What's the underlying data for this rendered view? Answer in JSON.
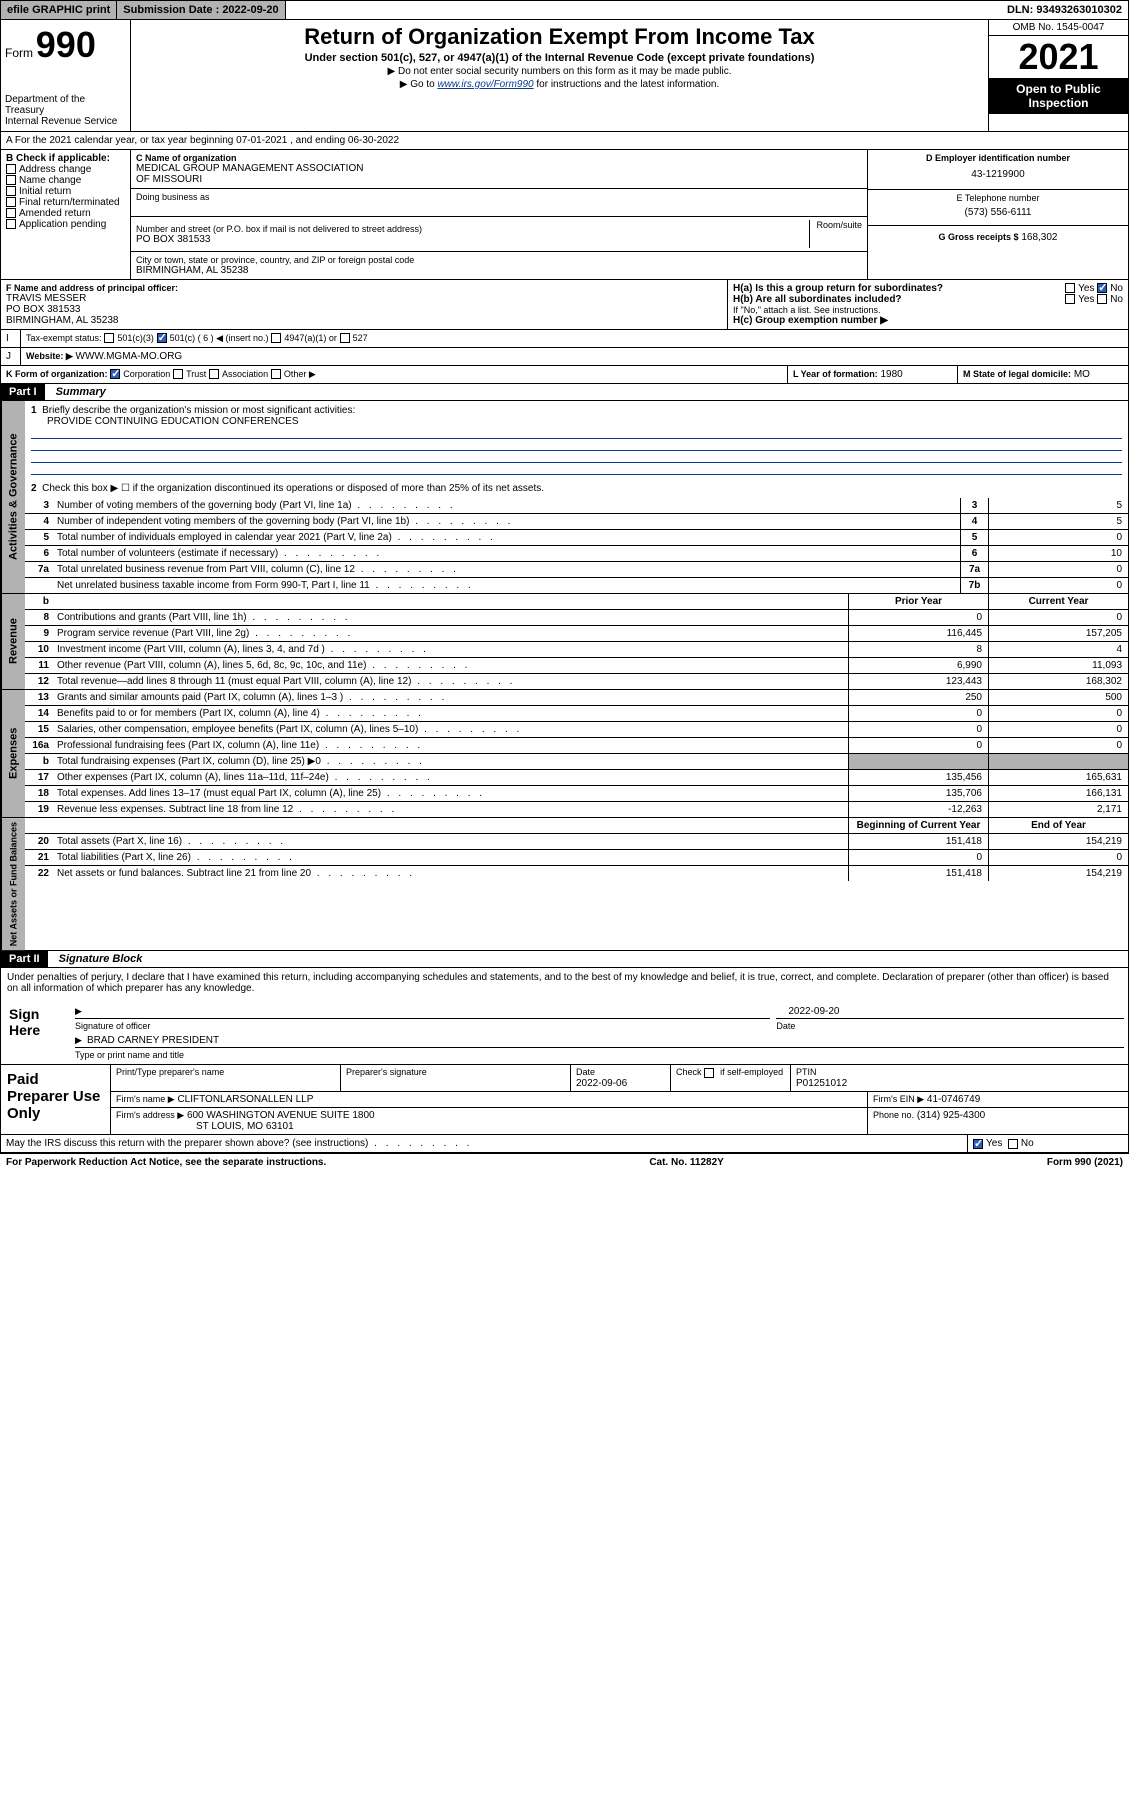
{
  "topbar": {
    "efile": "efile GRAPHIC print",
    "sub_label": "Submission Date : 2022-09-20",
    "dln": "DLN: 93493263010302"
  },
  "header": {
    "form_word": "Form",
    "form_number": "990",
    "title": "Return of Organization Exempt From Income Tax",
    "subtitle": "Under section 501(c), 527, or 4947(a)(1) of the Internal Revenue Code (except private foundations)",
    "note1": "▶ Do not enter social security numbers on this form as it may be made public.",
    "note2_pre": "▶ Go to ",
    "note2_link": "www.irs.gov/Form990",
    "note2_post": " for instructions and the latest information.",
    "dept": "Department of the Treasury",
    "irs": "Internal Revenue Service",
    "omb": "OMB No. 1545-0047",
    "year": "2021",
    "open": "Open to Public Inspection"
  },
  "A": {
    "text": "A For the 2021 calendar year, or tax year beginning 07-01-2021  , and ending 06-30-2022"
  },
  "B": {
    "title": "B Check if applicable:",
    "opts": [
      "Address change",
      "Name change",
      "Initial return",
      "Final return/terminated",
      "Amended return",
      "Application pending"
    ]
  },
  "C": {
    "name_lbl": "C Name of organization",
    "name1": "MEDICAL GROUP MANAGEMENT ASSOCIATION",
    "name2": "OF MISSOURI",
    "dba_lbl": "Doing business as",
    "addr_lbl": "Number and street (or P.O. box if mail is not delivered to street address)",
    "room_lbl": "Room/suite",
    "addr": "PO BOX 381533",
    "city_lbl": "City or town, state or province, country, and ZIP or foreign postal code",
    "city": "BIRMINGHAM, AL  35238"
  },
  "D": {
    "lbl": "D Employer identification number",
    "val": "43-1219900"
  },
  "E": {
    "lbl": "E Telephone number",
    "val": "(573) 556-6111"
  },
  "G": {
    "lbl": "G Gross receipts $",
    "val": "168,302"
  },
  "F": {
    "lbl": "F Name and address of principal officer:",
    "name": "TRAVIS MESSER",
    "addr1": "PO BOX 381533",
    "addr2": "BIRMINGHAM, AL  35238"
  },
  "H": {
    "a": "H(a)  Is this a group return for subordinates?",
    "b": "H(b)  Are all subordinates included?",
    "note": "If \"No,\" attach a list. See instructions.",
    "c": "H(c)  Group exemption number ▶"
  },
  "I": {
    "lbl": "Tax-exempt status:",
    "a": "501(c)(3)",
    "b": "501(c) ( 6 ) ◀ (insert no.)",
    "c": "4947(a)(1) or",
    "d": "527"
  },
  "J": {
    "lbl": "Website: ▶",
    "val": "WWW.MGMA-MO.ORG"
  },
  "K": {
    "lbl": "K Form of organization:",
    "a": "Corporation",
    "b": "Trust",
    "c": "Association",
    "d": "Other ▶"
  },
  "L": {
    "lbl": "L Year of formation:",
    "val": "1980"
  },
  "M": {
    "lbl": "M State of legal domicile:",
    "val": "MO"
  },
  "part1": {
    "hdr": "Part I",
    "title": "Summary",
    "q1": "Briefly describe the organization's mission or most significant activities:",
    "q1v": "PROVIDE CONTINUING EDUCATION CONFERENCES",
    "q2": "Check this box ▶ ☐  if the organization discontinued its operations or disposed of more than 25% of its net assets."
  },
  "tabs": {
    "gov": "Activities & Governance",
    "rev": "Revenue",
    "exp": "Expenses",
    "net": "Net Assets or Fund Balances"
  },
  "gov_lines": [
    {
      "n": "3",
      "t": "Number of voting members of the governing body (Part VI, line 1a)",
      "b": "3",
      "v": "5"
    },
    {
      "n": "4",
      "t": "Number of independent voting members of the governing body (Part VI, line 1b)",
      "b": "4",
      "v": "5"
    },
    {
      "n": "5",
      "t": "Total number of individuals employed in calendar year 2021 (Part V, line 2a)",
      "b": "5",
      "v": "0"
    },
    {
      "n": "6",
      "t": "Total number of volunteers (estimate if necessary)",
      "b": "6",
      "v": "10"
    },
    {
      "n": "7a",
      "t": "Total unrelated business revenue from Part VIII, column (C), line 12",
      "b": "7a",
      "v": "0"
    },
    {
      "n": "",
      "t": "Net unrelated business taxable income from Form 990-T, Part I, line 11",
      "b": "7b",
      "v": "0"
    }
  ],
  "col_hdr": {
    "prior": "Prior Year",
    "cur": "Current Year"
  },
  "rev_lines": [
    {
      "n": "8",
      "t": "Contributions and grants (Part VIII, line 1h)",
      "p": "0",
      "c": "0"
    },
    {
      "n": "9",
      "t": "Program service revenue (Part VIII, line 2g)",
      "p": "116,445",
      "c": "157,205"
    },
    {
      "n": "10",
      "t": "Investment income (Part VIII, column (A), lines 3, 4, and 7d )",
      "p": "8",
      "c": "4"
    },
    {
      "n": "11",
      "t": "Other revenue (Part VIII, column (A), lines 5, 6d, 8c, 9c, 10c, and 11e)",
      "p": "6,990",
      "c": "11,093"
    },
    {
      "n": "12",
      "t": "Total revenue—add lines 8 through 11 (must equal Part VIII, column (A), line 12)",
      "p": "123,443",
      "c": "168,302"
    }
  ],
  "exp_lines": [
    {
      "n": "13",
      "t": "Grants and similar amounts paid (Part IX, column (A), lines 1–3 )",
      "p": "250",
      "c": "500"
    },
    {
      "n": "14",
      "t": "Benefits paid to or for members (Part IX, column (A), line 4)",
      "p": "0",
      "c": "0"
    },
    {
      "n": "15",
      "t": "Salaries, other compensation, employee benefits (Part IX, column (A), lines 5–10)",
      "p": "0",
      "c": "0"
    },
    {
      "n": "16a",
      "t": "Professional fundraising fees (Part IX, column (A), line 11e)",
      "p": "0",
      "c": "0"
    },
    {
      "n": "b",
      "t": "Total fundraising expenses (Part IX, column (D), line 25) ▶0",
      "p": "",
      "c": "",
      "shade": true
    },
    {
      "n": "17",
      "t": "Other expenses (Part IX, column (A), lines 11a–11d, 11f–24e)",
      "p": "135,456",
      "c": "165,631"
    },
    {
      "n": "18",
      "t": "Total expenses. Add lines 13–17 (must equal Part IX, column (A), line 25)",
      "p": "135,706",
      "c": "166,131"
    },
    {
      "n": "19",
      "t": "Revenue less expenses. Subtract line 18 from line 12",
      "p": "-12,263",
      "c": "2,171"
    }
  ],
  "net_hdr": {
    "b": "Beginning of Current Year",
    "e": "End of Year"
  },
  "net_lines": [
    {
      "n": "20",
      "t": "Total assets (Part X, line 16)",
      "p": "151,418",
      "c": "154,219"
    },
    {
      "n": "21",
      "t": "Total liabilities (Part X, line 26)",
      "p": "0",
      "c": "0"
    },
    {
      "n": "22",
      "t": "Net assets or fund balances. Subtract line 21 from line 20",
      "p": "151,418",
      "c": "154,219"
    }
  ],
  "part2": {
    "hdr": "Part II",
    "title": "Signature Block"
  },
  "sig": {
    "decl": "Under penalties of perjury, I declare that I have examined this return, including accompanying schedules and statements, and to the best of my knowledge and belief, it is true, correct, and complete. Declaration of preparer (other than officer) is based on all information of which preparer has any knowledge.",
    "here": "Sign Here",
    "officer_lbl": "Signature of officer",
    "date_val": "2022-09-20",
    "date_lbl": "Date",
    "officer_name": "BRAD CARNEY  PRESIDENT",
    "name_lbl": "Type or print name and title"
  },
  "paid": {
    "lbl": "Paid Preparer Use Only",
    "h1": "Print/Type preparer's name",
    "h2": "Preparer's signature",
    "h3": "Date",
    "h3v": "2022-09-06",
    "h4a": "Check",
    "h4b": "if self-employed",
    "h5": "PTIN",
    "h5v": "P01251012",
    "firm_lbl": "Firm's name    ▶",
    "firm": "CLIFTONLARSONALLEN LLP",
    "ein_lbl": "Firm's EIN ▶",
    "ein": "41-0746749",
    "addr_lbl": "Firm's address ▶",
    "addr1": "600 WASHINGTON AVENUE SUITE 1800",
    "addr2": "ST LOUIS, MO  63101",
    "phone_lbl": "Phone no.",
    "phone": "(314) 925-4300"
  },
  "may": "May the IRS discuss this return with the preparer shown above? (see instructions)",
  "footer": {
    "l": "For Paperwork Reduction Act Notice, see the separate instructions.",
    "m": "Cat. No. 11282Y",
    "r": "Form 990 (2021)"
  },
  "yn": {
    "yes": "Yes",
    "no": "No"
  }
}
